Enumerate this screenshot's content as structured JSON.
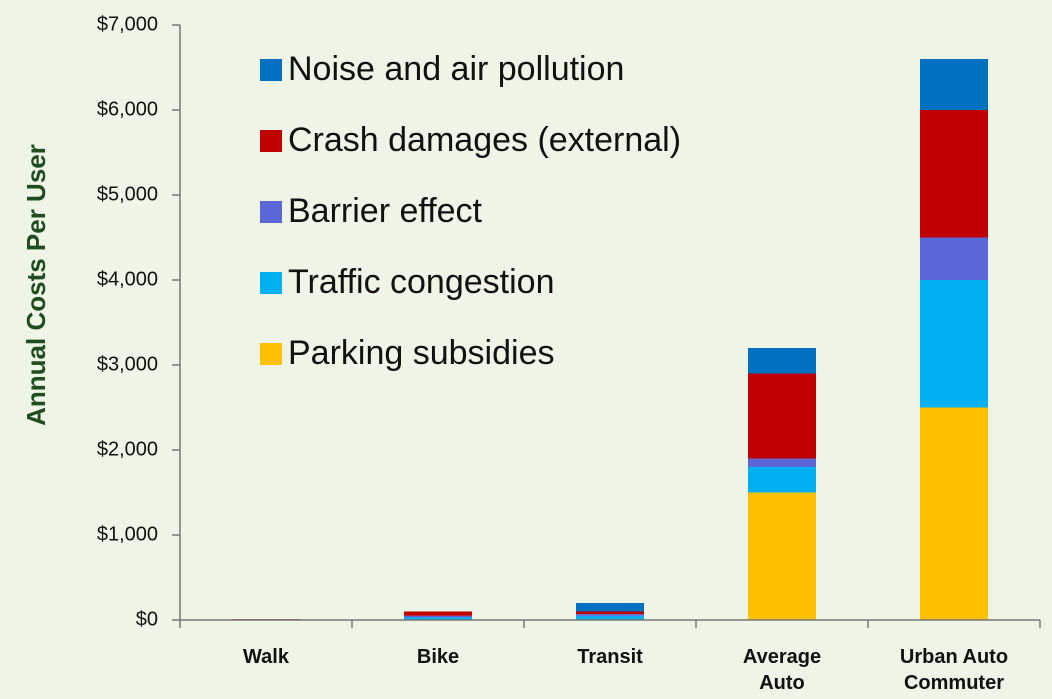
{
  "chart_data": {
    "type": "stacked_bar",
    "y_label": "Annual Costs Per User",
    "categories": [
      "Walk",
      "Bike",
      "Transit",
      "Average Auto",
      "Urban Auto Commuter"
    ],
    "series": [
      {
        "name": "Parking subsidies",
        "color": "#ffc000",
        "values": [
          0,
          0,
          0,
          1500,
          2500
        ]
      },
      {
        "name": "Traffic congestion",
        "color": "#00b0f0",
        "values": [
          0,
          30,
          50,
          300,
          1500
        ]
      },
      {
        "name": "Barrier effect",
        "color": "#5b67d6",
        "values": [
          0,
          20,
          20,
          100,
          500
        ]
      },
      {
        "name": "Crash damages (external)",
        "color": "#c00000",
        "values": [
          10,
          50,
          30,
          1000,
          1500
        ]
      },
      {
        "name": "Noise and air pollution",
        "color": "#0070c0",
        "values": [
          0,
          0,
          100,
          300,
          600
        ]
      }
    ],
    "ylim": [
      0,
      7000
    ],
    "yticks": [
      {
        "value": 0,
        "label": "$0"
      },
      {
        "value": 1000,
        "label": "$1,000"
      },
      {
        "value": 2000,
        "label": "$2,000"
      },
      {
        "value": 3000,
        "label": "$3,000"
      },
      {
        "value": 4000,
        "label": "$4,000"
      },
      {
        "value": 5000,
        "label": "$5,000"
      },
      {
        "value": 6000,
        "label": "$6,000"
      },
      {
        "value": 7000,
        "label": "$7,000"
      }
    ],
    "legend": "upper left",
    "legend_order": "reversed"
  }
}
